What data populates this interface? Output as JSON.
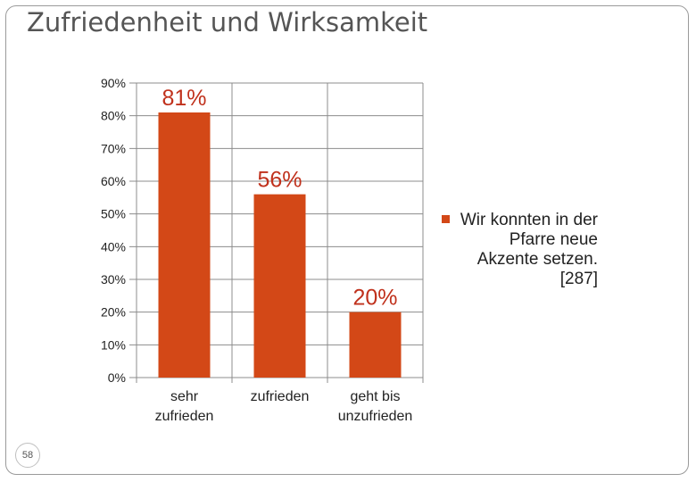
{
  "slide": {
    "title": "Zufriedenheit und Wirksamkeit",
    "page_number": "58"
  },
  "colors": {
    "bar": "#D34817",
    "data_label": "#C0311C",
    "grid": "#8c8c8c"
  },
  "chart_data": {
    "type": "bar",
    "categories": [
      "sehr zufrieden",
      "zufrieden",
      "geht bis unzufrieden"
    ],
    "category_lines": [
      [
        "sehr",
        "zufrieden"
      ],
      [
        "zufrieden"
      ],
      [
        "geht bis",
        "unzufrieden"
      ]
    ],
    "series": [
      {
        "name": "Wir konnten in der Pfarre neue Akzente setzen. [287]",
        "values": [
          81,
          56,
          20
        ]
      }
    ],
    "data_labels": [
      "81%",
      "56%",
      "20%"
    ],
    "ylim": [
      0,
      90
    ],
    "yticks": [
      0,
      10,
      20,
      30,
      40,
      50,
      60,
      70,
      80,
      90
    ],
    "ytick_labels": [
      "0%",
      "10%",
      "20%",
      "30%",
      "40%",
      "50%",
      "60%",
      "70%",
      "80%",
      "90%"
    ],
    "grid": true,
    "legend_position": "right"
  }
}
